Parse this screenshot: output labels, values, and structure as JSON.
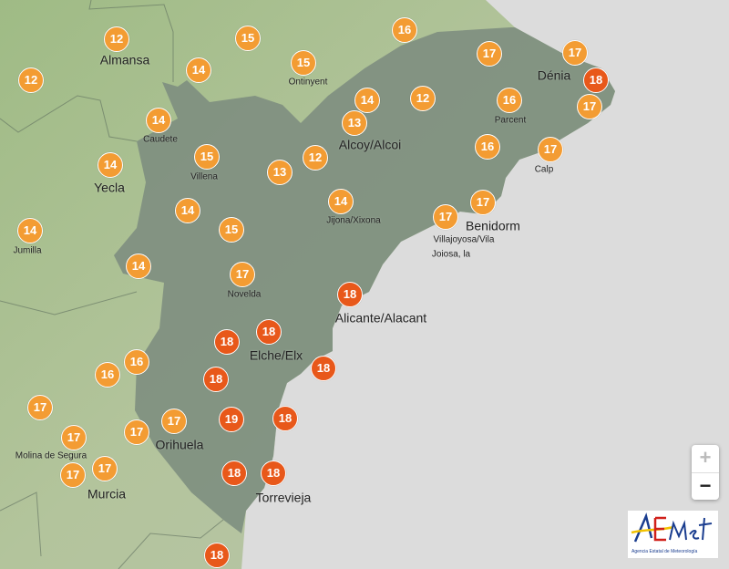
{
  "map": {
    "colors": {
      "sea": "#dcdcdc",
      "land": "#a9bd8f",
      "province": "#7f8f80",
      "marker_warm": "#f39c33",
      "marker_hot": "#e8581a"
    },
    "markers": [
      {
        "value": "12",
        "level": "warm"
      },
      {
        "value": "12",
        "level": "warm"
      },
      {
        "value": "15",
        "level": "warm"
      },
      {
        "value": "14",
        "level": "warm"
      },
      {
        "value": "15",
        "level": "warm"
      },
      {
        "value": "16",
        "level": "warm"
      },
      {
        "value": "17",
        "level": "warm"
      },
      {
        "value": "17",
        "level": "warm"
      },
      {
        "value": "18",
        "level": "hot"
      },
      {
        "value": "17",
        "level": "warm"
      },
      {
        "value": "14",
        "level": "warm"
      },
      {
        "value": "12",
        "level": "warm"
      },
      {
        "value": "13",
        "level": "warm"
      },
      {
        "value": "16",
        "level": "warm"
      },
      {
        "value": "16",
        "level": "warm"
      },
      {
        "value": "17",
        "level": "warm"
      },
      {
        "value": "14",
        "level": "warm"
      },
      {
        "value": "15",
        "level": "warm"
      },
      {
        "value": "14",
        "level": "warm"
      },
      {
        "value": "13",
        "level": "warm"
      },
      {
        "value": "12",
        "level": "warm"
      },
      {
        "value": "14",
        "level": "warm"
      },
      {
        "value": "17",
        "level": "warm"
      },
      {
        "value": "17",
        "level": "warm"
      },
      {
        "value": "14",
        "level": "warm"
      },
      {
        "value": "14",
        "level": "warm"
      },
      {
        "value": "15",
        "level": "warm"
      },
      {
        "value": "14",
        "level": "warm"
      },
      {
        "value": "17",
        "level": "warm"
      },
      {
        "value": "18",
        "level": "hot"
      },
      {
        "value": "18",
        "level": "hot"
      },
      {
        "value": "18",
        "level": "hot"
      },
      {
        "value": "16",
        "level": "warm"
      },
      {
        "value": "16",
        "level": "warm"
      },
      {
        "value": "18",
        "level": "hot"
      },
      {
        "value": "18",
        "level": "hot"
      },
      {
        "value": "17",
        "level": "warm"
      },
      {
        "value": "17",
        "level": "warm"
      },
      {
        "value": "17",
        "level": "warm"
      },
      {
        "value": "17",
        "level": "warm"
      },
      {
        "value": "19",
        "level": "hot"
      },
      {
        "value": "18",
        "level": "hot"
      },
      {
        "value": "17",
        "level": "warm"
      },
      {
        "value": "17",
        "level": "warm"
      },
      {
        "value": "18",
        "level": "hot"
      },
      {
        "value": "18",
        "level": "hot"
      },
      {
        "value": "18",
        "level": "hot"
      }
    ],
    "places": [
      {
        "name": "Molina de Segura",
        "size": "small"
      },
      {
        "name": "Almansa",
        "size": "big"
      },
      {
        "name": "Ontinyent",
        "size": "small"
      },
      {
        "name": "Caudete",
        "size": "small"
      },
      {
        "name": "Villena",
        "size": "small"
      },
      {
        "name": "Yecla",
        "size": "big"
      },
      {
        "name": "Alcoy/Alcoi",
        "size": "big"
      },
      {
        "name": "Jijona/Xixona",
        "size": "small"
      },
      {
        "name": "Parcent",
        "size": "small"
      },
      {
        "name": "Dénia",
        "size": "big"
      },
      {
        "name": "Calp",
        "size": "small"
      },
      {
        "name": "Benidorm",
        "size": "big"
      },
      {
        "name": "Villajoyosa/Vila",
        "size": "small"
      },
      {
        "name": "Joiosa, la",
        "size": "small"
      },
      {
        "name": "Jumilla",
        "size": "small"
      },
      {
        "name": "Novelda",
        "size": "small"
      },
      {
        "name": "Alicante/Alacant",
        "size": "big"
      },
      {
        "name": "Elche/Elx",
        "size": "big"
      },
      {
        "name": "Orihuela",
        "size": "big"
      },
      {
        "name": "Murcia",
        "size": "big"
      },
      {
        "name": "Torrevieja",
        "size": "big"
      }
    ]
  },
  "controls": {
    "zoom_in": "+",
    "zoom_out": "−"
  },
  "logo": {
    "text": "AEMet",
    "subtitle": "Agencia Estatal de Meteorología"
  }
}
